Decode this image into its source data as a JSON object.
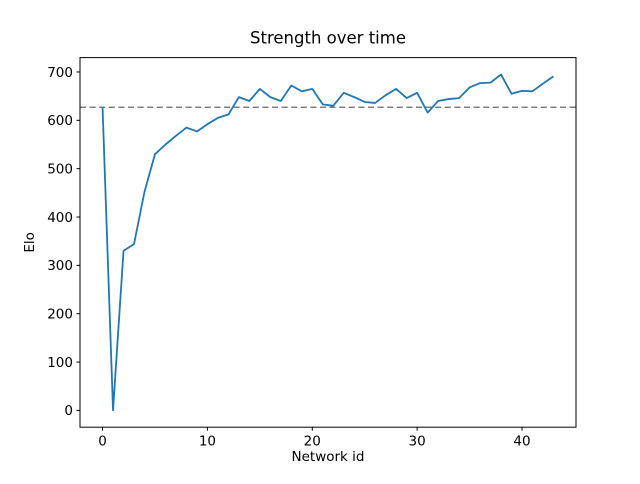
{
  "figure": {
    "title": "Strength over time",
    "xlabel": "Network id",
    "ylabel": "Elo"
  },
  "chart_data": {
    "type": "line",
    "title": "Strength over time",
    "xlabel": "Network id",
    "ylabel": "Elo",
    "x": [
      0,
      1,
      2,
      3,
      4,
      5,
      6,
      7,
      8,
      9,
      10,
      11,
      12,
      13,
      14,
      15,
      16,
      17,
      18,
      19,
      20,
      21,
      22,
      23,
      24,
      25,
      26,
      27,
      28,
      29,
      30,
      31,
      32,
      33,
      34,
      35,
      36,
      37,
      38,
      39,
      40,
      41,
      42,
      43
    ],
    "series": [
      {
        "name": "Elo",
        "values": [
          627,
          0,
          330,
          344,
          452,
          530,
          550,
          568,
          585,
          577,
          592,
          605,
          612,
          648,
          640,
          665,
          648,
          640,
          672,
          660,
          665,
          633,
          630,
          657,
          648,
          638,
          636,
          652,
          665,
          646,
          657,
          616,
          640,
          644,
          646,
          668,
          677,
          678,
          695,
          655,
          661,
          660,
          676,
          691
        ]
      }
    ],
    "baseline": {
      "y": 627,
      "style": "dashed"
    },
    "xlim": [
      -2.15,
      45.15
    ],
    "ylim": [
      -34.75,
      729.75
    ],
    "xticks": [
      0,
      10,
      20,
      30,
      40
    ],
    "yticks": [
      0,
      100,
      200,
      300,
      400,
      500,
      600,
      700
    ],
    "grid": false,
    "legend": "none",
    "colors": {
      "line": "#1f77b4",
      "baseline": "#7f7f7f",
      "axes": "#000000",
      "background": "#ffffff"
    }
  }
}
